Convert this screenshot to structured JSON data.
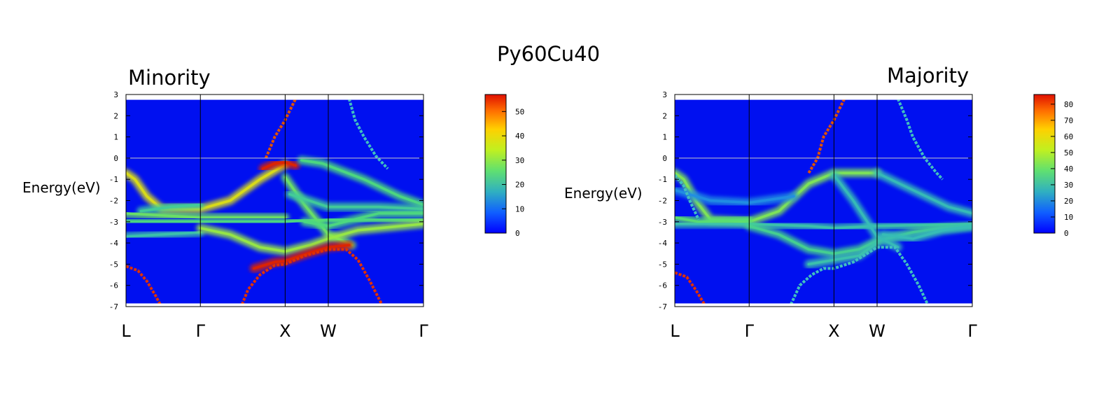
{
  "title": "Py60Cu40",
  "chart_data": [
    {
      "type": "heatmap",
      "title": "Minority",
      "ylabel": "Energy(eV)",
      "ylim": [
        -7,
        3
      ],
      "yticks": [
        "3",
        "2",
        "1",
        "0",
        "-1",
        "-2",
        "-3",
        "-4",
        "-5",
        "-6",
        "-7"
      ],
      "kpoints": [
        {
          "label": "L",
          "k": 0.0
        },
        {
          "label": "Γ",
          "k": 0.25
        },
        {
          "label": "X",
          "k": 0.535
        },
        {
          "label": "W",
          "k": 0.68
        },
        {
          "label": "Γ",
          "k": 1.0
        }
      ],
      "fermi_level": 0,
      "colorbar": {
        "min": 0,
        "max": 57,
        "ticks": [
          "50",
          "40",
          "30",
          "20",
          "10",
          "0"
        ]
      },
      "bands": [
        {
          "points": [
            [
              0.0,
              -0.7
            ],
            [
              0.03,
              -1.0
            ],
            [
              0.07,
              -1.8
            ],
            [
              0.12,
              -2.4
            ],
            [
              0.25,
              -2.4
            ],
            [
              0.35,
              -2.0
            ],
            [
              0.45,
              -1.0
            ],
            [
              0.535,
              -0.3
            ]
          ],
          "weight": 40
        },
        {
          "points": [
            [
              0.0,
              -2.6
            ],
            [
              0.12,
              -2.7
            ],
            [
              0.25,
              -2.8
            ],
            [
              0.4,
              -2.8
            ],
            [
              0.535,
              -2.8
            ]
          ],
          "weight": 28
        },
        {
          "points": [
            [
              0.0,
              -3.0
            ],
            [
              0.25,
              -3.0
            ],
            [
              0.45,
              -3.0
            ],
            [
              0.535,
              -3.0
            ],
            [
              0.68,
              -2.9
            ],
            [
              1.0,
              -2.9
            ]
          ],
          "weight": 25
        },
        {
          "points": [
            [
              0.05,
              -2.5
            ],
            [
              0.15,
              -2.3
            ],
            [
              0.25,
              -2.2
            ]
          ],
          "weight": 22
        },
        {
          "points": [
            [
              0.46,
              -0.5
            ],
            [
              0.5,
              -0.25
            ],
            [
              0.535,
              -0.2
            ],
            [
              0.57,
              -0.35
            ]
          ],
          "weight": 56
        },
        {
          "points": [
            [
              0.535,
              -0.9
            ],
            [
              0.6,
              -2.2
            ],
            [
              0.68,
              -3.6
            ],
            [
              0.76,
              -4.1
            ]
          ],
          "weight": 28
        },
        {
          "points": [
            [
              0.59,
              -0.1
            ],
            [
              0.66,
              -0.25
            ],
            [
              0.8,
              -1.0
            ],
            [
              0.92,
              -1.8
            ],
            [
              1.0,
              -2.2
            ]
          ],
          "weight": 25
        },
        {
          "points": [
            [
              0.55,
              -1.7
            ],
            [
              0.68,
              -2.3
            ],
            [
              0.85,
              -2.3
            ],
            [
              1.0,
              -2.4
            ]
          ],
          "weight": 22
        },
        {
          "points": [
            [
              0.6,
              -3.0
            ],
            [
              0.68,
              -3.2
            ],
            [
              0.85,
              -2.6
            ],
            [
              1.0,
              -2.6
            ]
          ],
          "weight": 25
        },
        {
          "points": [
            [
              0.0,
              -3.7
            ],
            [
              0.12,
              -3.6
            ],
            [
              0.25,
              -3.5
            ]
          ],
          "weight": 20
        },
        {
          "points": [
            [
              0.25,
              -3.3
            ],
            [
              0.35,
              -3.6
            ],
            [
              0.45,
              -4.2
            ],
            [
              0.535,
              -4.4
            ],
            [
              0.62,
              -4.1
            ],
            [
              0.68,
              -3.8
            ],
            [
              0.78,
              -3.4
            ],
            [
              1.0,
              -3.1
            ]
          ],
          "weight": 32
        },
        {
          "points": [
            [
              0.43,
              -5.2
            ],
            [
              0.5,
              -4.9
            ],
            [
              0.535,
              -4.85
            ],
            [
              0.62,
              -4.45
            ],
            [
              0.68,
              -4.2
            ],
            [
              0.75,
              -4.1
            ]
          ],
          "weight": 56
        }
      ],
      "sharp_bands": [
        {
          "points": [
            [
              0.0,
              -5.1
            ],
            [
              0.04,
              -5.3
            ],
            [
              0.07,
              -5.8
            ],
            [
              0.1,
              -6.5
            ],
            [
              0.115,
              -6.9
            ]
          ],
          "color": "#e03000"
        },
        {
          "points": [
            [
              0.39,
              -6.9
            ],
            [
              0.41,
              -6.2
            ],
            [
              0.45,
              -5.5
            ],
            [
              0.5,
              -5.05
            ],
            [
              0.535,
              -5.0
            ],
            [
              0.6,
              -4.6
            ],
            [
              0.68,
              -4.3
            ],
            [
              0.74,
              -4.3
            ],
            [
              0.78,
              -4.8
            ],
            [
              0.82,
              -5.8
            ],
            [
              0.86,
              -6.9
            ]
          ],
          "color": "#e03000"
        },
        {
          "points": [
            [
              0.47,
              0.0
            ],
            [
              0.5,
              1.0
            ],
            [
              0.535,
              1.8
            ],
            [
              0.57,
              2.8
            ]
          ],
          "color": "#e05000"
        },
        {
          "points": [
            [
              0.75,
              2.8
            ],
            [
              0.77,
              1.8
            ],
            [
              0.8,
              1.0
            ],
            [
              0.84,
              0.1
            ],
            [
              0.88,
              -0.5
            ]
          ],
          "color": "#40c0c0"
        }
      ]
    },
    {
      "type": "heatmap",
      "title": "Majority",
      "ylabel": "Energy(eV)",
      "ylim": [
        -7,
        3
      ],
      "yticks": [
        "3",
        "2",
        "1",
        "0",
        "-1",
        "-2",
        "-3",
        "-4",
        "-5",
        "-6",
        "-7"
      ],
      "kpoints": [
        {
          "label": "L",
          "k": 0.0
        },
        {
          "label": "Γ",
          "k": 0.25
        },
        {
          "label": "X",
          "k": 0.535
        },
        {
          "label": "W",
          "k": 0.68
        },
        {
          "label": "Γ",
          "k": 1.0
        }
      ],
      "fermi_level": 0,
      "colorbar": {
        "min": 0,
        "max": 86,
        "ticks": [
          "80",
          "70",
          "60",
          "50",
          "40",
          "30",
          "20",
          "10",
          "0"
        ]
      },
      "bands": [
        {
          "points": [
            [
              0.0,
              -0.7
            ],
            [
              0.03,
              -1.0
            ],
            [
              0.07,
              -2.0
            ],
            [
              0.12,
              -2.9
            ],
            [
              0.25,
              -3.0
            ],
            [
              0.35,
              -2.5
            ],
            [
              0.45,
              -1.2
            ],
            [
              0.535,
              -0.7
            ],
            [
              0.68,
              -0.7
            ]
          ],
          "weight": 45
        },
        {
          "points": [
            [
              0.0,
              -1.5
            ],
            [
              0.12,
              -2.0
            ],
            [
              0.25,
              -2.1
            ],
            [
              0.4,
              -1.8
            ]
          ],
          "weight": 18
        },
        {
          "points": [
            [
              0.0,
              -3.1
            ],
            [
              0.25,
              -3.1
            ],
            [
              0.45,
              -3.2
            ],
            [
              0.535,
              -3.3
            ],
            [
              0.68,
              -3.2
            ],
            [
              1.0,
              -3.1
            ]
          ],
          "weight": 30
        },
        {
          "points": [
            [
              0.0,
              -2.8
            ],
            [
              0.08,
              -3.0
            ],
            [
              0.25,
              -2.9
            ]
          ],
          "weight": 40
        },
        {
          "points": [
            [
              0.25,
              -3.2
            ],
            [
              0.35,
              -3.6
            ],
            [
              0.45,
              -4.3
            ],
            [
              0.535,
              -4.5
            ],
            [
              0.62,
              -4.3
            ],
            [
              0.68,
              -3.9
            ],
            [
              0.8,
              -3.5
            ],
            [
              0.9,
              -3.3
            ],
            [
              1.0,
              -3.2
            ]
          ],
          "weight": 35
        },
        {
          "points": [
            [
              0.535,
              -0.8
            ],
            [
              0.6,
              -2.0
            ],
            [
              0.68,
              -3.7
            ],
            [
              0.75,
              -4.2
            ]
          ],
          "weight": 28
        },
        {
          "points": [
            [
              0.68,
              -0.7
            ],
            [
              0.8,
              -1.5
            ],
            [
              0.92,
              -2.3
            ],
            [
              1.0,
              -2.6
            ]
          ],
          "weight": 28
        },
        {
          "points": [
            [
              0.7,
              -3.6
            ],
            [
              0.8,
              -3.8
            ],
            [
              0.9,
              -3.4
            ],
            [
              1.0,
              -3.2
            ]
          ],
          "weight": 28
        },
        {
          "points": [
            [
              0.45,
              -5.0
            ],
            [
              0.535,
              -4.8
            ],
            [
              0.62,
              -4.6
            ],
            [
              0.68,
              -4.0
            ]
          ],
          "weight": 30
        }
      ],
      "sharp_bands": [
        {
          "points": [
            [
              0.0,
              -5.4
            ],
            [
              0.04,
              -5.6
            ],
            [
              0.07,
              -6.2
            ],
            [
              0.1,
              -6.9
            ]
          ],
          "color": "#e03000"
        },
        {
          "points": [
            [
              0.39,
              -6.9
            ],
            [
              0.42,
              -6.0
            ],
            [
              0.46,
              -5.5
            ],
            [
              0.5,
              -5.2
            ],
            [
              0.535,
              -5.2
            ],
            [
              0.6,
              -4.9
            ],
            [
              0.68,
              -4.2
            ],
            [
              0.74,
              -4.2
            ],
            [
              0.78,
              -5.0
            ],
            [
              0.82,
              -6.0
            ],
            [
              0.85,
              -6.9
            ]
          ],
          "color": "#40c0c0"
        },
        {
          "points": [
            [
              0.45,
              -0.7
            ],
            [
              0.48,
              0.0
            ],
            [
              0.5,
              1.0
            ],
            [
              0.535,
              1.8
            ],
            [
              0.57,
              2.8
            ]
          ],
          "color": "#e05000"
        },
        {
          "points": [
            [
              0.75,
              2.8
            ],
            [
              0.78,
              1.8
            ],
            [
              0.8,
              1.0
            ],
            [
              0.84,
              0.0
            ],
            [
              0.88,
              -0.7
            ],
            [
              0.9,
              -1.0
            ]
          ],
          "color": "#40c0c0"
        },
        {
          "points": [
            [
              0.0,
              -0.8
            ],
            [
              0.03,
              -1.3
            ],
            [
              0.05,
              -2.0
            ],
            [
              0.08,
              -2.9
            ]
          ],
          "color": "#40c0c0"
        }
      ]
    }
  ]
}
